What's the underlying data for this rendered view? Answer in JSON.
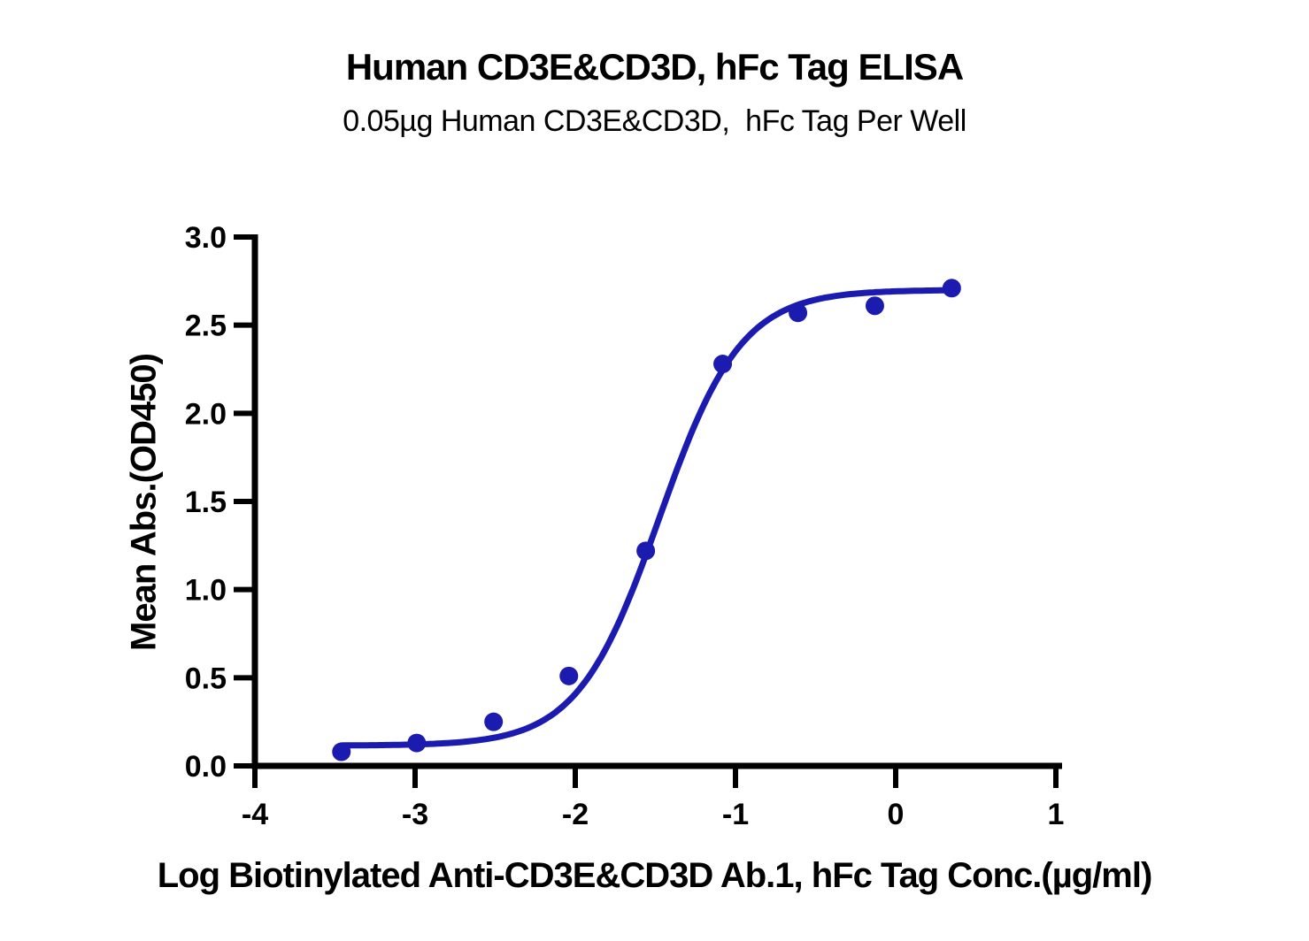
{
  "chart_data": {
    "type": "scatter",
    "title": "Human CD3E&CD3D, hFc Tag ELISA",
    "subtitle": "0.05µg Human CD3E&CD3D,  hFc Tag Per Well",
    "xlabel": "Log Biotinylated Anti-CD3E&CD3D Ab.1, hFc Tag Conc.(µg/ml)",
    "ylabel": "Mean Abs.(OD450)",
    "xlim": [
      -4,
      1
    ],
    "ylim": [
      0,
      3
    ],
    "xticks": [
      -4,
      -3,
      -2,
      -1,
      0,
      1
    ],
    "yticks": [
      0,
      0.5,
      1,
      1.5,
      2,
      2.5,
      3
    ],
    "grid": false,
    "legend": false,
    "series": [
      {
        "name": "Biotinylated Anti-CD3E&CD3D Ab.1, hFc Tag",
        "x": [
          -3.46,
          -2.99,
          -2.51,
          -2.04,
          -1.56,
          -1.08,
          -0.61,
          -0.13,
          0.35
        ],
        "y": [
          0.08,
          0.13,
          0.25,
          0.51,
          1.22,
          2.28,
          2.57,
          2.61,
          2.71
        ]
      }
    ],
    "fit_curve": {
      "model": "4PL sigmoid",
      "bottom": 0.115,
      "top": 2.7,
      "logEC50": -1.475,
      "hillslope": 1.7,
      "x_start": -3.46,
      "x_end": 0.35
    },
    "colors": {
      "series": "#1b1bb0",
      "axis": "#000000",
      "background": "#ffffff"
    }
  }
}
